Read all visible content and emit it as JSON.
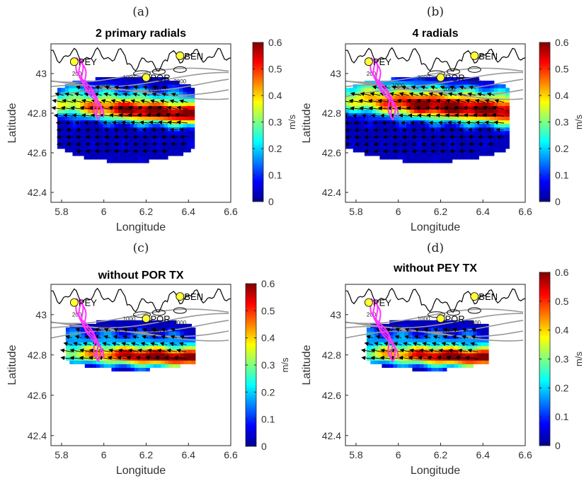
{
  "colors": {
    "accent_magenta": "#ff33ff",
    "station_marker": "#ffff33",
    "bathymetry": "#999999",
    "coast": "#000000"
  },
  "chart_data": [
    {
      "type": "heatmap",
      "panel_label": "(a)",
      "title": "2 primary radials",
      "xlabel": "Longitude",
      "ylabel": "Latitude",
      "xlim": [
        5.75,
        6.6
      ],
      "ylim": [
        42.35,
        43.15
      ],
      "xticks": [
        "5.8",
        "6",
        "6.2",
        "6.4",
        "6.6"
      ],
      "yticks": [
        "42.4",
        "42.6",
        "42.8",
        "43"
      ],
      "colorbar": {
        "label": "m/s",
        "range": [
          0,
          0.6
        ],
        "ticks": [
          "0",
          "0.1",
          "0.2",
          "0.3",
          "0.4",
          "0.5",
          "0.6"
        ]
      },
      "stations": [
        {
          "name": "PEY",
          "lon": 5.86,
          "lat": 43.06
        },
        {
          "name": "POR",
          "lon": 6.2,
          "lat": 42.98
        },
        {
          "name": "BEN",
          "lon": 6.36,
          "lat": 43.09
        }
      ],
      "contour_labels": [
        "200",
        "1000",
        "1000",
        "2000",
        "2000"
      ],
      "jet_max_speed": 0.6
    },
    {
      "type": "heatmap",
      "panel_label": "(b)",
      "title": "4 radials",
      "xlabel": "Longitude",
      "ylabel": "Latitude",
      "xlim": [
        5.75,
        6.6
      ],
      "ylim": [
        42.35,
        43.15
      ],
      "xticks": [
        "5.8",
        "6",
        "6.2",
        "6.4",
        "6.6"
      ],
      "yticks": [
        "42.4",
        "42.6",
        "42.8",
        "43"
      ],
      "colorbar": {
        "label": "m/s",
        "range": [
          0,
          0.6
        ],
        "ticks": [
          "0",
          "0.1",
          "0.2",
          "0.3",
          "0.4",
          "0.5",
          "0.6"
        ]
      },
      "stations": [
        {
          "name": "PEY",
          "lon": 5.86,
          "lat": 43.06
        },
        {
          "name": "POR",
          "lon": 6.2,
          "lat": 42.98
        },
        {
          "name": "BEN",
          "lon": 6.36,
          "lat": 43.09
        }
      ],
      "contour_labels": [
        "200",
        "1000",
        "2000",
        "1000",
        "2000"
      ],
      "jet_max_speed": 0.6
    },
    {
      "type": "heatmap",
      "panel_label": "(c)",
      "title": "without POR TX",
      "xlabel": "Longitude",
      "ylabel": "Latitude",
      "xlim": [
        5.75,
        6.6
      ],
      "ylim": [
        42.35,
        43.15
      ],
      "xticks": [
        "5.8",
        "6",
        "6.2",
        "6.4",
        "6.6"
      ],
      "yticks": [
        "42.4",
        "42.6",
        "42.8",
        "43"
      ],
      "colorbar": {
        "label": "m/s",
        "range": [
          0,
          0.6
        ],
        "ticks": [
          "0",
          "0.1",
          "0.2",
          "0.3",
          "0.4",
          "0.5",
          "0.6"
        ]
      },
      "stations": [
        {
          "name": "PEY",
          "lon": 5.86,
          "lat": 43.06
        },
        {
          "name": "POR",
          "lon": 6.2,
          "lat": 42.98
        },
        {
          "name": "BEN",
          "lon": 6.36,
          "lat": 43.09
        }
      ],
      "contour_labels": [
        "200",
        "1000",
        "1000",
        "2000",
        "1000"
      ],
      "jet_max_speed": 0.6
    },
    {
      "type": "heatmap",
      "panel_label": "(d)",
      "title": "without PEY TX",
      "xlabel": "Longitude",
      "ylabel": "Latitude",
      "xlim": [
        5.75,
        6.6
      ],
      "ylim": [
        42.35,
        43.15
      ],
      "xticks": [
        "5.8",
        "6",
        "6.2",
        "6.4",
        "6.6"
      ],
      "yticks": [
        "42.4",
        "42.6",
        "42.8",
        "43"
      ],
      "colorbar": {
        "label": "m/s",
        "range": [
          0,
          0.6
        ],
        "ticks": [
          "0",
          "0.1",
          "0.2",
          "0.3",
          "0.4",
          "0.5",
          "0.6"
        ]
      },
      "stations": [
        {
          "name": "PEY",
          "lon": 5.86,
          "lat": 43.06
        },
        {
          "name": "POR",
          "lon": 6.2,
          "lat": 42.98
        },
        {
          "name": "BEN",
          "lon": 6.36,
          "lat": 43.09
        }
      ],
      "contour_labels": [
        "200",
        "200",
        "1000",
        "200",
        "2000"
      ],
      "jet_max_speed": 0.6
    }
  ]
}
